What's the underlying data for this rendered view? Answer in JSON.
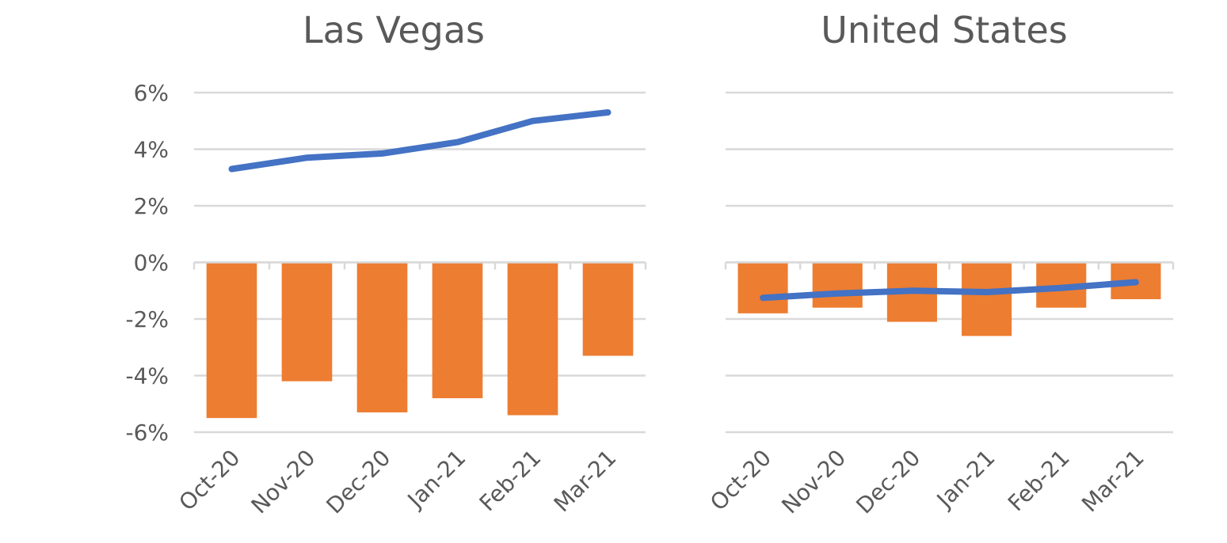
{
  "chart_data": [
    {
      "type": "bar",
      "title": "Las Vegas",
      "categories": [
        "Oct-20",
        "Nov-20",
        "Dec-20",
        "Jan-21",
        "Feb-21",
        "Mar-21"
      ],
      "ylim": [
        -6,
        6
      ],
      "yticks": [
        "6%",
        "4%",
        "2%",
        "0%",
        "-2%",
        "-4%",
        "-6%"
      ],
      "ytick_values": [
        6,
        4,
        2,
        0,
        -2,
        -4,
        -6
      ],
      "grid": true,
      "series": [
        {
          "kind": "bar",
          "color": "#ED7D31",
          "values": [
            -5.5,
            -4.2,
            -5.3,
            -4.8,
            -5.4,
            -3.3
          ]
        },
        {
          "kind": "line",
          "color": "#4472C4",
          "values": [
            3.3,
            3.7,
            3.85,
            4.25,
            5.0,
            5.3
          ]
        }
      ]
    },
    {
      "type": "bar",
      "title": "United States",
      "categories": [
        "Oct-20",
        "Nov-20",
        "Dec-20",
        "Jan-21",
        "Feb-21",
        "Mar-21"
      ],
      "ylim": [
        -6,
        6
      ],
      "grid": true,
      "series": [
        {
          "kind": "bar",
          "color": "#ED7D31",
          "values": [
            -1.8,
            -1.6,
            -2.1,
            -2.6,
            -1.6,
            -1.3
          ]
        },
        {
          "kind": "line",
          "color": "#4472C4",
          "values": [
            -1.25,
            -1.1,
            -1.0,
            -1.05,
            -0.9,
            -0.7
          ]
        }
      ]
    }
  ]
}
